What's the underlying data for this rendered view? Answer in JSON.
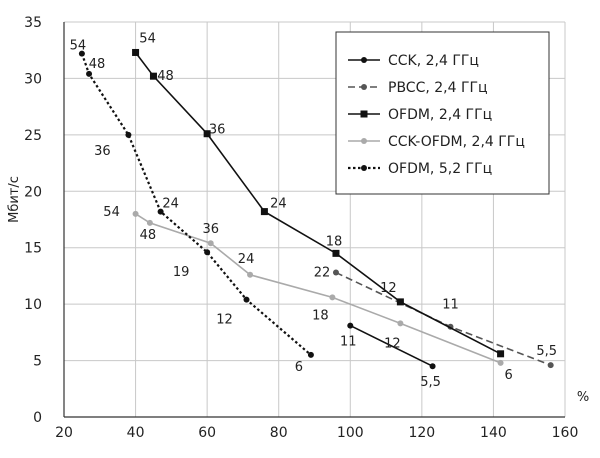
{
  "chart_data": {
    "type": "line",
    "xlabel": "%",
    "ylabel": "Мбит/с",
    "xlim": [
      20,
      160
    ],
    "ylim": [
      0,
      35
    ],
    "xticks": [
      20,
      40,
      60,
      80,
      100,
      120,
      140,
      160
    ],
    "yticks": [
      0,
      5,
      10,
      15,
      20,
      25,
      30,
      35
    ],
    "grid": true,
    "legend_position": "top-right",
    "series": [
      {
        "name": "CCK, 2,4 ГГц",
        "style": "solid",
        "marker": "circle",
        "color": "#111111",
        "points": [
          {
            "x": 100,
            "y": 8.1,
            "label": "11"
          },
          {
            "x": 123,
            "y": 4.5,
            "label": "5,5"
          }
        ]
      },
      {
        "name": "PBCC, 2,4 ГГц",
        "style": "dashed",
        "marker": "circle",
        "color": "#555555",
        "points": [
          {
            "x": 96,
            "y": 12.8,
            "label": "22"
          },
          {
            "x": 128,
            "y": 8.0,
            "label": "11"
          },
          {
            "x": 156,
            "y": 4.6,
            "label": "5,5"
          }
        ]
      },
      {
        "name": "OFDM, 2,4 ГГц",
        "style": "solid",
        "marker": "square",
        "color": "#111111",
        "points": [
          {
            "x": 40,
            "y": 32.3,
            "label": "54"
          },
          {
            "x": 45,
            "y": 30.2,
            "label": "48"
          },
          {
            "x": 60,
            "y": 25.1,
            "label": "36"
          },
          {
            "x": 76,
            "y": 18.2,
            "label": "24"
          },
          {
            "x": 96,
            "y": 14.5,
            "label": "18"
          },
          {
            "x": 114,
            "y": 10.2,
            "label": "12"
          },
          {
            "x": 142,
            "y": 5.6,
            "label": ""
          }
        ]
      },
      {
        "name": "CCK-OFDM, 2,4 ГГц",
        "style": "solid",
        "marker": "circle",
        "color": "#aaaaaa",
        "points": [
          {
            "x": 40,
            "y": 18.0,
            "label": "54"
          },
          {
            "x": 44,
            "y": 17.2,
            "label": "48"
          },
          {
            "x": 61,
            "y": 15.4,
            "label": "36"
          },
          {
            "x": 72,
            "y": 12.6,
            "label": "24"
          },
          {
            "x": 95,
            "y": 10.6,
            "label": "18"
          },
          {
            "x": 114,
            "y": 8.3,
            "label": "12"
          },
          {
            "x": 142,
            "y": 4.8,
            "label": "6"
          }
        ]
      },
      {
        "name": "OFDM, 5,2 ГГц",
        "style": "dotted",
        "marker": "circle",
        "color": "#111111",
        "points": [
          {
            "x": 25,
            "y": 32.2,
            "label": "54"
          },
          {
            "x": 27,
            "y": 30.4,
            "label": "48"
          },
          {
            "x": 38,
            "y": 25.0,
            "label": "36"
          },
          {
            "x": 47,
            "y": 18.2,
            "label": "24"
          },
          {
            "x": 60,
            "y": 14.6,
            "label": "19"
          },
          {
            "x": 71,
            "y": 10.4,
            "label": "12"
          },
          {
            "x": 89,
            "y": 5.5,
            "label": "6"
          }
        ]
      }
    ]
  }
}
